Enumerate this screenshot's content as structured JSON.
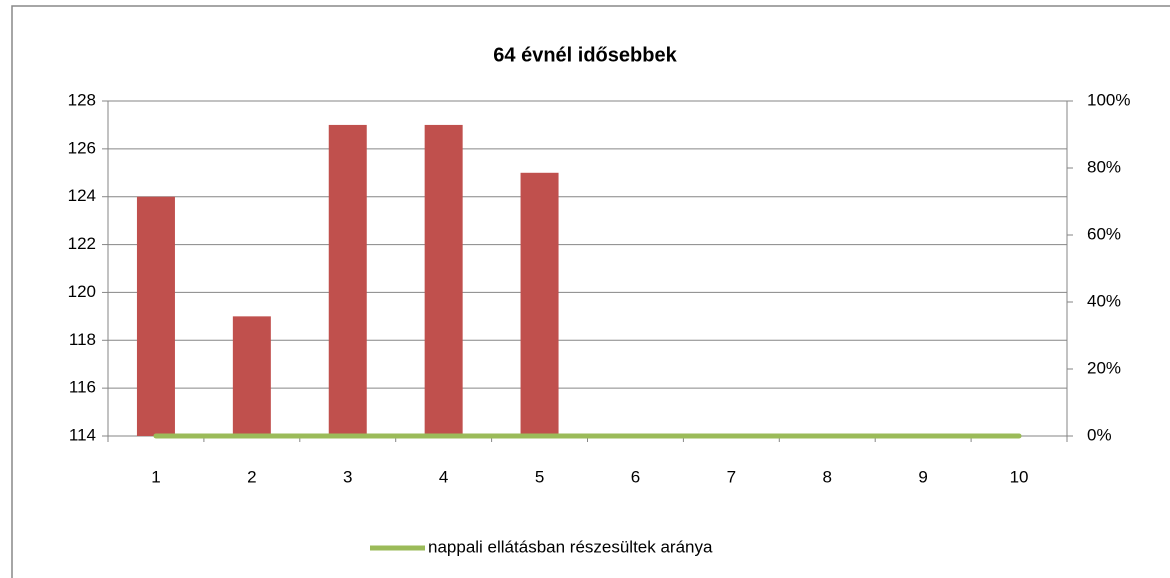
{
  "chart_data": {
    "type": "bar",
    "title": "64 évnél idősebbek",
    "categories": [
      "1",
      "2",
      "3",
      "4",
      "5",
      "6",
      "7",
      "8",
      "9",
      "10"
    ],
    "series": [
      {
        "color": "#c0504d",
        "values": [
          124,
          119,
          127,
          127,
          125,
          null,
          null,
          null,
          null,
          null
        ]
      },
      {
        "name": "nappali ellátásban részesültek aránya",
        "type": "line",
        "axis": "y2",
        "color": "#9bbb59",
        "values": [
          0,
          0,
          0,
          0,
          0,
          0,
          0,
          0,
          0,
          0
        ]
      }
    ],
    "ylim": [
      114,
      128
    ],
    "yticks": [
      114,
      116,
      118,
      120,
      122,
      124,
      126,
      128
    ],
    "y2lim": [
      0,
      100
    ],
    "y2ticks": [
      {
        "value": 0,
        "label": "0%"
      },
      {
        "value": 20,
        "label": "20%"
      },
      {
        "value": 40,
        "label": "40%"
      },
      {
        "value": 60,
        "label": "60%"
      },
      {
        "value": 80,
        "label": "80%"
      },
      {
        "value": 100,
        "label": "100%"
      }
    ],
    "grid": true,
    "legend": "bottom"
  }
}
